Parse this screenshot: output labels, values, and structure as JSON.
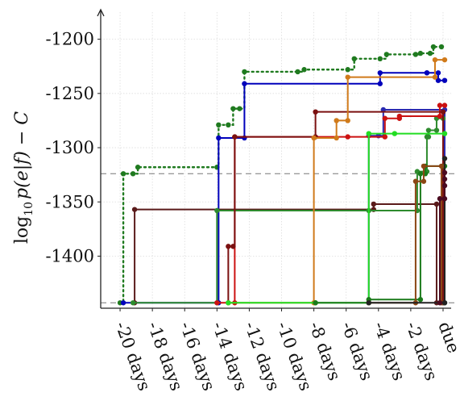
{
  "chart_data": {
    "type": "line",
    "title": "",
    "xlabel": "",
    "ylabel": "log10 p(e|f) − C",
    "ylabel_parts": {
      "log": "log",
      "sub": "10",
      "expr": "p(e|f) − C"
    },
    "x_ticks": [
      {
        "value": -20,
        "label": "-20 days"
      },
      {
        "value": -18,
        "label": "-18 days"
      },
      {
        "value": -16,
        "label": "-16 days"
      },
      {
        "value": -14,
        "label": "-14 days"
      },
      {
        "value": -12,
        "label": "-12 days"
      },
      {
        "value": -10,
        "label": "-10 days"
      },
      {
        "value": -8,
        "label": "-8 days"
      },
      {
        "value": -6,
        "label": "-6 days"
      },
      {
        "value": -4,
        "label": "-4 days"
      },
      {
        "value": -2,
        "label": "-2 days"
      },
      {
        "value": 0,
        "label": "due"
      }
    ],
    "y_ticks": [
      {
        "value": -1200,
        "label": "-1200"
      },
      {
        "value": -1250,
        "label": "-1250"
      },
      {
        "value": -1300,
        "label": "-1300"
      },
      {
        "value": -1350,
        "label": "-1350"
      },
      {
        "value": -1400,
        "label": "-1400"
      }
    ],
    "xlim": [
      -21.2,
      0.5
    ],
    "ylim": [
      -1448,
      -1175
    ],
    "grid": true,
    "reference_lines": [
      {
        "y": -1324,
        "style": "dashed",
        "color": "#777777"
      },
      {
        "y": -1443,
        "style": "dashed",
        "color": "#777777"
      }
    ],
    "series": [
      {
        "color": "#1f7a1f",
        "dotted": true,
        "step": "post",
        "points": [
          [
            -20.0,
            -1443
          ],
          [
            -19.8,
            -1324
          ],
          [
            -19.2,
            -1324
          ],
          [
            -18.9,
            -1318
          ],
          [
            -14.0,
            -1318
          ],
          [
            -13.9,
            -1279
          ],
          [
            -13.3,
            -1279
          ],
          [
            -13.0,
            -1264
          ],
          [
            -12.6,
            -1264
          ],
          [
            -12.3,
            -1230
          ],
          [
            -9.0,
            -1230
          ],
          [
            -8.6,
            -1228
          ],
          [
            -5.9,
            -1228
          ],
          [
            -5.5,
            -1218
          ],
          [
            -3.9,
            -1218
          ],
          [
            -3.5,
            -1214
          ],
          [
            -1.7,
            -1214
          ],
          [
            -1.4,
            -1213
          ],
          [
            -0.8,
            -1213
          ],
          [
            -0.6,
            -1207
          ],
          [
            -0.1,
            -1207
          ]
        ]
      },
      {
        "color": "#0000bb",
        "step": "post",
        "points": [
          [
            -19.8,
            -1443
          ],
          [
            -13.9,
            -1443
          ],
          [
            -13.9,
            -1291
          ],
          [
            -12.3,
            -1291
          ],
          [
            -12.3,
            -1241
          ],
          [
            -3.9,
            -1241
          ],
          [
            -3.9,
            -1231
          ],
          [
            -1.0,
            -1231
          ],
          [
            -1.0,
            -1231
          ],
          [
            -0.3,
            -1231
          ],
          [
            -0.3,
            -1238
          ],
          [
            0.1,
            -1238
          ]
        ]
      },
      {
        "color": "#2a2ab0",
        "step": "post",
        "points": [
          [
            -4.6,
            -1443
          ],
          [
            -4.6,
            -1289
          ],
          [
            -4.0,
            -1289
          ],
          [
            -3.7,
            -1265
          ],
          [
            0.1,
            -1265
          ],
          [
            0.1,
            -1443
          ]
        ]
      },
      {
        "color": "#5a1a1a",
        "step": "post",
        "points": [
          [
            -19.1,
            -1443
          ],
          [
            -19.1,
            -1357
          ],
          [
            -4.3,
            -1357
          ],
          [
            -4.3,
            -1352
          ],
          [
            -0.4,
            -1352
          ],
          [
            -0.4,
            -1443
          ]
        ]
      },
      {
        "color": "#2e8b2e",
        "step": "post",
        "points": [
          [
            -19.2,
            -1443
          ],
          [
            -14.0,
            -1443
          ],
          [
            -14.0,
            -1358
          ],
          [
            -4.6,
            -1358
          ],
          [
            -1.6,
            -1358
          ],
          [
            -1.6,
            -1322
          ],
          [
            -1.0,
            -1322
          ],
          [
            -1.0,
            -1290
          ],
          [
            -0.9,
            -1290
          ],
          [
            -0.9,
            -1284
          ],
          [
            -0.4,
            -1284
          ],
          [
            -0.4,
            -1273
          ],
          [
            0.0,
            -1273
          ]
        ]
      },
      {
        "color": "#cc1111",
        "step": "post",
        "points": [
          [
            -14.0,
            -1443
          ],
          [
            -12.9,
            -1443
          ],
          [
            -12.9,
            -1290
          ],
          [
            -5.9,
            -1290
          ],
          [
            -3.6,
            -1290
          ],
          [
            -3.6,
            -1273
          ],
          [
            -2.7,
            -1273
          ],
          [
            -2.7,
            -1271
          ],
          [
            -0.2,
            -1271
          ],
          [
            -0.2,
            -1261
          ],
          [
            0.1,
            -1261
          ]
        ]
      },
      {
        "color": "#7b1010",
        "step": "post",
        "points": [
          [
            -13.3,
            -1443
          ],
          [
            -13.3,
            -1391
          ],
          [
            -13.0,
            -1391
          ],
          [
            -12.9,
            -1290
          ],
          [
            -7.9,
            -1290
          ],
          [
            -7.9,
            -1267
          ],
          [
            0.0,
            -1267
          ],
          [
            0.0,
            -1443
          ]
        ]
      },
      {
        "color": "#d07a1a",
        "step": "post",
        "points": [
          [
            -13.3,
            -1443
          ],
          [
            -8.0,
            -1443
          ],
          [
            -8.0,
            -1291
          ],
          [
            -6.6,
            -1291
          ],
          [
            -6.6,
            -1275
          ],
          [
            -5.9,
            -1275
          ],
          [
            -5.9,
            -1235
          ],
          [
            -0.5,
            -1235
          ],
          [
            -0.5,
            -1219
          ],
          [
            0.1,
            -1219
          ]
        ]
      },
      {
        "color": "#22dd22",
        "step": "post",
        "points": [
          [
            -13.3,
            -1443
          ],
          [
            -7.9,
            -1443
          ],
          [
            -4.6,
            -1443
          ],
          [
            -4.6,
            -1287
          ],
          [
            -3.0,
            -1287
          ],
          [
            0.1,
            -1287
          ]
        ]
      },
      {
        "color": "#1a7a1a",
        "step": "post",
        "points": [
          [
            -7.9,
            -1443
          ],
          [
            -4.6,
            -1443
          ],
          [
            -4.6,
            -1440
          ],
          [
            -1.4,
            -1440
          ],
          [
            -1.4,
            -1324
          ],
          [
            -1.1,
            -1324
          ],
          [
            -1.1,
            -1317
          ],
          [
            0.1,
            -1317
          ],
          [
            0.1,
            -1443
          ]
        ]
      },
      {
        "color": "#8b4513",
        "step": "post",
        "points": [
          [
            -4.6,
            -1443
          ],
          [
            -1.7,
            -1443
          ],
          [
            -1.7,
            -1331
          ],
          [
            -1.2,
            -1331
          ],
          [
            -1.2,
            -1317
          ],
          [
            -0.1,
            -1317
          ],
          [
            -0.1,
            -1443
          ]
        ]
      },
      {
        "color": "#222222",
        "step": "post",
        "points": [
          [
            -4.6,
            -1443
          ],
          [
            0.1,
            -1443
          ],
          [
            0.1,
            -1310
          ]
        ]
      },
      {
        "color": "#4a0a20",
        "step": "post",
        "points": [
          [
            -0.2,
            -1443
          ],
          [
            -0.2,
            -1347
          ],
          [
            0.1,
            -1347
          ],
          [
            0.1,
            -1335
          ],
          [
            0.1,
            -1329
          ],
          [
            0.1,
            -1323
          ]
        ]
      }
    ]
  }
}
